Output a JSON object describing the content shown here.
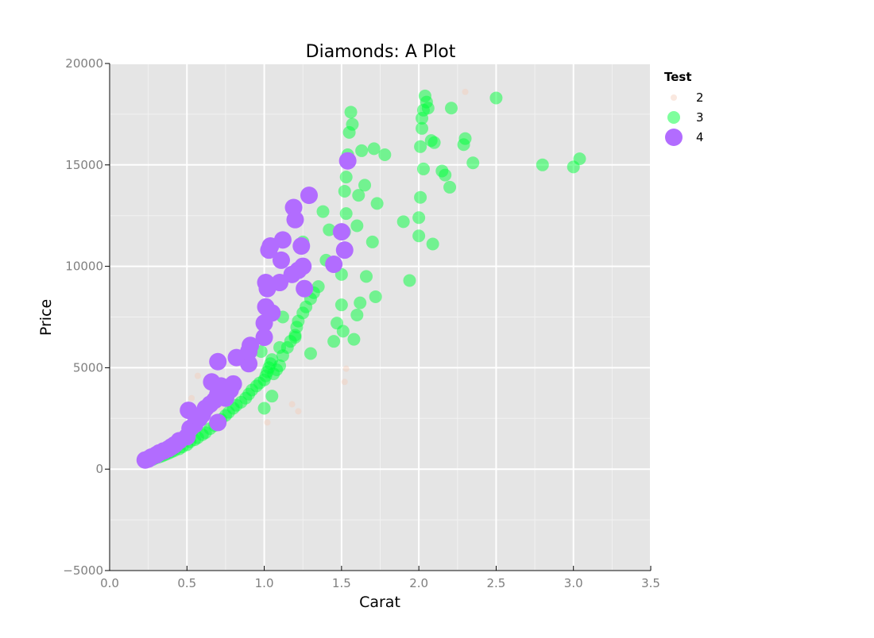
{
  "chart_data": {
    "type": "scatter",
    "title": "Diamonds: A Plot",
    "xlabel": "Carat",
    "ylabel": "Price",
    "xlim": [
      0,
      3.5
    ],
    "ylim": [
      -5000,
      20000
    ],
    "x_ticks": [
      0.0,
      0.5,
      1.0,
      1.5,
      2.0,
      2.5,
      3.0,
      3.5
    ],
    "x_tick_labels": [
      "0.0",
      "0.5",
      "1.0",
      "1.5",
      "2.0",
      "2.5",
      "3.0",
      "3.5"
    ],
    "y_ticks": [
      -5000,
      0,
      5000,
      10000,
      15000,
      20000
    ],
    "y_tick_labels": [
      "−5000",
      "0",
      "5000",
      "10000",
      "15000",
      "20000"
    ],
    "grid": true,
    "background": "#e5e5e5",
    "legend": {
      "title": "Test",
      "placement": "right",
      "entries": [
        {
          "label": "2",
          "color": "#f5cdb8"
        },
        {
          "label": "3",
          "color": "#00ff3c"
        },
        {
          "label": "4",
          "color": "#b26cff"
        }
      ]
    },
    "series": [
      {
        "name": "2",
        "color": "#f5cdb8",
        "x": [
          0.24,
          0.27,
          0.31,
          0.42,
          0.53,
          0.57,
          0.72,
          1.02,
          1.18,
          1.22,
          1.52,
          1.53,
          2.3
        ],
        "y": [
          360,
          480,
          620,
          940,
          3500,
          4600,
          3050,
          2300,
          3200,
          2850,
          4300,
          4950,
          18600
        ]
      },
      {
        "name": "3",
        "color": "#00ff3c",
        "x": [
          0.23,
          0.26,
          0.28,
          0.3,
          0.32,
          0.34,
          0.36,
          0.38,
          0.4,
          0.42,
          0.45,
          0.47,
          0.5,
          0.52,
          0.55,
          0.57,
          0.6,
          0.62,
          0.65,
          0.68,
          0.7,
          0.72,
          0.75,
          0.77,
          0.8,
          0.82,
          0.85,
          0.88,
          0.9,
          0.92,
          0.95,
          0.97,
          1.0,
          1.01,
          1.02,
          1.03,
          1.04,
          1.05,
          1.06,
          1.08,
          1.1,
          1.12,
          1.15,
          1.17,
          1.2,
          1.21,
          1.22,
          1.25,
          1.27,
          1.3,
          1.32,
          1.35,
          1.38,
          1.4,
          1.42,
          1.45,
          1.47,
          1.5,
          1.5,
          1.51,
          1.51,
          1.52,
          1.52,
          1.53,
          1.53,
          1.54,
          1.55,
          1.56,
          1.57,
          1.58,
          1.6,
          1.6,
          1.61,
          1.62,
          1.63,
          1.65,
          1.66,
          1.7,
          1.71,
          1.72,
          1.73,
          1.78,
          1.9,
          1.94,
          2.0,
          2.0,
          2.01,
          2.01,
          2.02,
          2.02,
          2.03,
          2.03,
          2.04,
          2.05,
          2.06,
          2.08,
          2.09,
          2.1,
          2.15,
          2.17,
          2.2,
          2.21,
          2.29,
          2.3,
          2.35,
          2.5,
          2.8,
          3.0,
          3.04,
          1.0,
          1.05,
          1.1,
          0.98,
          1.12,
          1.2,
          1.3,
          1.25
        ],
        "y": [
          340,
          420,
          480,
          550,
          600,
          650,
          720,
          780,
          850,
          920,
          1000,
          1100,
          1200,
          1350,
          1450,
          1550,
          1700,
          1800,
          2000,
          2150,
          2300,
          2450,
          2650,
          2800,
          3000,
          3150,
          3300,
          3500,
          3700,
          3900,
          4100,
          4250,
          4400,
          4600,
          4800,
          5000,
          5200,
          5400,
          4700,
          4900,
          5100,
          5600,
          6000,
          6300,
          6600,
          7000,
          7300,
          7700,
          8000,
          8400,
          8700,
          9000,
          12700,
          10300,
          11800,
          6300,
          7200,
          8100,
          9600,
          6800,
          10800,
          11700,
          13700,
          12600,
          14400,
          15500,
          16600,
          17600,
          17000,
          6400,
          7600,
          12000,
          13500,
          8200,
          15700,
          14000,
          9500,
          11200,
          15800,
          8500,
          13100,
          15500,
          12200,
          9300,
          11500,
          12400,
          13400,
          15900,
          16800,
          17300,
          17700,
          14800,
          18400,
          18100,
          17800,
          16200,
          11100,
          16100,
          14700,
          14500,
          13900,
          17800,
          16000,
          16300,
          15100,
          18300,
          15000,
          14900,
          15300,
          3000,
          3600,
          6000,
          5800,
          7500,
          6500,
          5700,
          11200
        ]
      },
      {
        "name": "4",
        "color": "#b26cff",
        "x": [
          0.23,
          0.25,
          0.27,
          0.3,
          0.32,
          0.35,
          0.38,
          0.4,
          0.42,
          0.45,
          0.5,
          0.52,
          0.55,
          0.58,
          0.6,
          0.62,
          0.65,
          0.68,
          0.7,
          0.72,
          0.75,
          0.78,
          0.8,
          0.82,
          0.9,
          0.9,
          0.91,
          1.0,
          1.0,
          1.01,
          1.01,
          1.02,
          1.03,
          1.04,
          1.05,
          1.1,
          1.11,
          1.12,
          1.18,
          1.19,
          1.2,
          1.22,
          1.24,
          1.25,
          1.26,
          1.29,
          1.45,
          1.5,
          1.52,
          1.54,
          0.51,
          0.57,
          0.66,
          0.7,
          0.7
        ],
        "y": [
          450,
          500,
          600,
          700,
          800,
          900,
          1000,
          1100,
          1200,
          1400,
          1600,
          2000,
          2200,
          2500,
          2700,
          3000,
          3200,
          3400,
          3700,
          4100,
          3500,
          3900,
          4200,
          5500,
          5200,
          5800,
          6100,
          6500,
          7200,
          8000,
          9200,
          8900,
          10800,
          11000,
          7700,
          9200,
          10300,
          11300,
          9600,
          12900,
          12300,
          9800,
          11000,
          10000,
          8900,
          13500,
          10100,
          11700,
          10800,
          15200,
          2900,
          2600,
          4300,
          5300,
          2300
        ]
      }
    ]
  }
}
